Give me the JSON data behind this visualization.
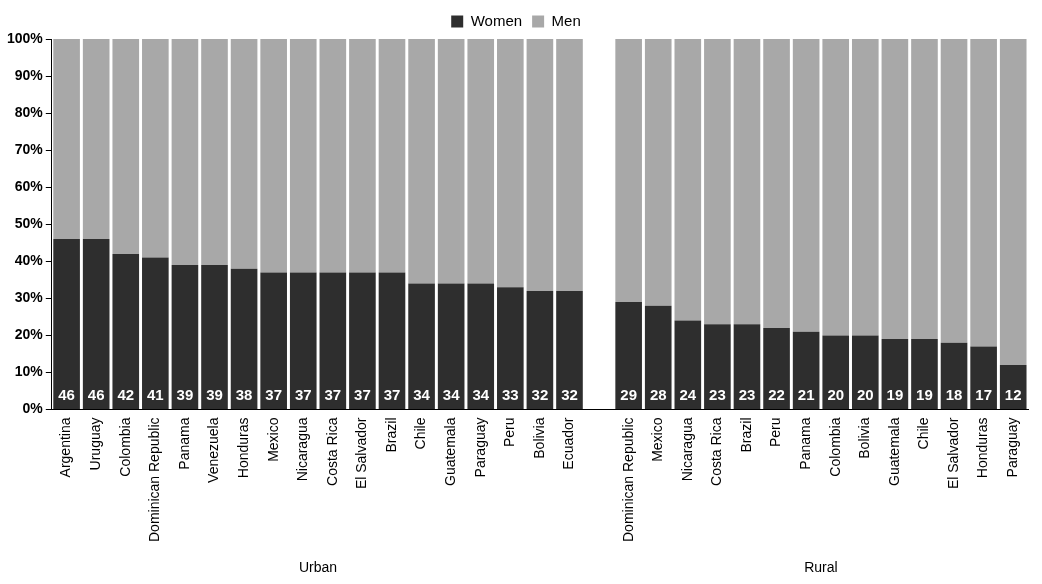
{
  "chart_data": {
    "type": "bar",
    "stacked": true,
    "categories": [
      "Argentina",
      "Uruguay",
      "Colombia",
      "Dominican Republic",
      "Panama",
      "Venezuela",
      "Honduras",
      "Mexico",
      "Nicaragua",
      "Costa Rica",
      "El Salvador",
      "Brazil",
      "Chile",
      "Guatemala",
      "Paraguay",
      "Peru",
      "Bolivia",
      "Ecuador",
      null,
      "Dominican Republic",
      "Mexico",
      "Nicaragua",
      "Costa Rica",
      "Brazil",
      "Peru",
      "Panama",
      "Colombia",
      "Bolivia",
      "Guatemala",
      "Chile",
      "El Salvador",
      "Honduras",
      "Paraguay"
    ],
    "series": [
      {
        "name": "Women",
        "color": "#2e2e2e",
        "values": [
          46,
          46,
          42,
          41,
          39,
          39,
          38,
          37,
          37,
          37,
          37,
          37,
          34,
          34,
          34,
          33,
          32,
          32,
          null,
          29,
          28,
          24,
          23,
          23,
          22,
          21,
          20,
          20,
          19,
          19,
          18,
          17,
          12
        ],
        "value_labels": [
          "46",
          "46",
          "42",
          "41",
          "39",
          "39",
          "38",
          "37",
          "37",
          "37",
          "37",
          "37",
          "34",
          "34",
          "34",
          "33",
          "32",
          "32",
          null,
          "29",
          "28",
          "24",
          "23",
          "23",
          "22",
          "21",
          "20",
          "20",
          "19",
          "19",
          "18",
          "17",
          "12"
        ]
      },
      {
        "name": "Men",
        "color": "#a8a8a8",
        "values": [
          54,
          54,
          58,
          59,
          61,
          61,
          62,
          63,
          63,
          63,
          63,
          63,
          66,
          66,
          66,
          67,
          68,
          68,
          null,
          71,
          72,
          76,
          77,
          77,
          78,
          79,
          80,
          80,
          81,
          81,
          82,
          83,
          88
        ]
      }
    ],
    "ylim": [
      0,
      100
    ],
    "yticks": [
      {
        "value": 0,
        "label": "0%"
      },
      {
        "value": 10,
        "label": "10%"
      },
      {
        "value": 20,
        "label": "20%"
      },
      {
        "value": 30,
        "label": "30%"
      },
      {
        "value": 40,
        "label": "40%"
      },
      {
        "value": 50,
        "label": "50%"
      },
      {
        "value": 60,
        "label": "60%"
      },
      {
        "value": 70,
        "label": "70%"
      },
      {
        "value": 80,
        "label": "80%"
      },
      {
        "value": 90,
        "label": "90%"
      },
      {
        "value": 100,
        "label": "100%"
      }
    ],
    "grid": false,
    "legend": "top",
    "annotations": [
      "Urban",
      "Rural"
    ]
  }
}
